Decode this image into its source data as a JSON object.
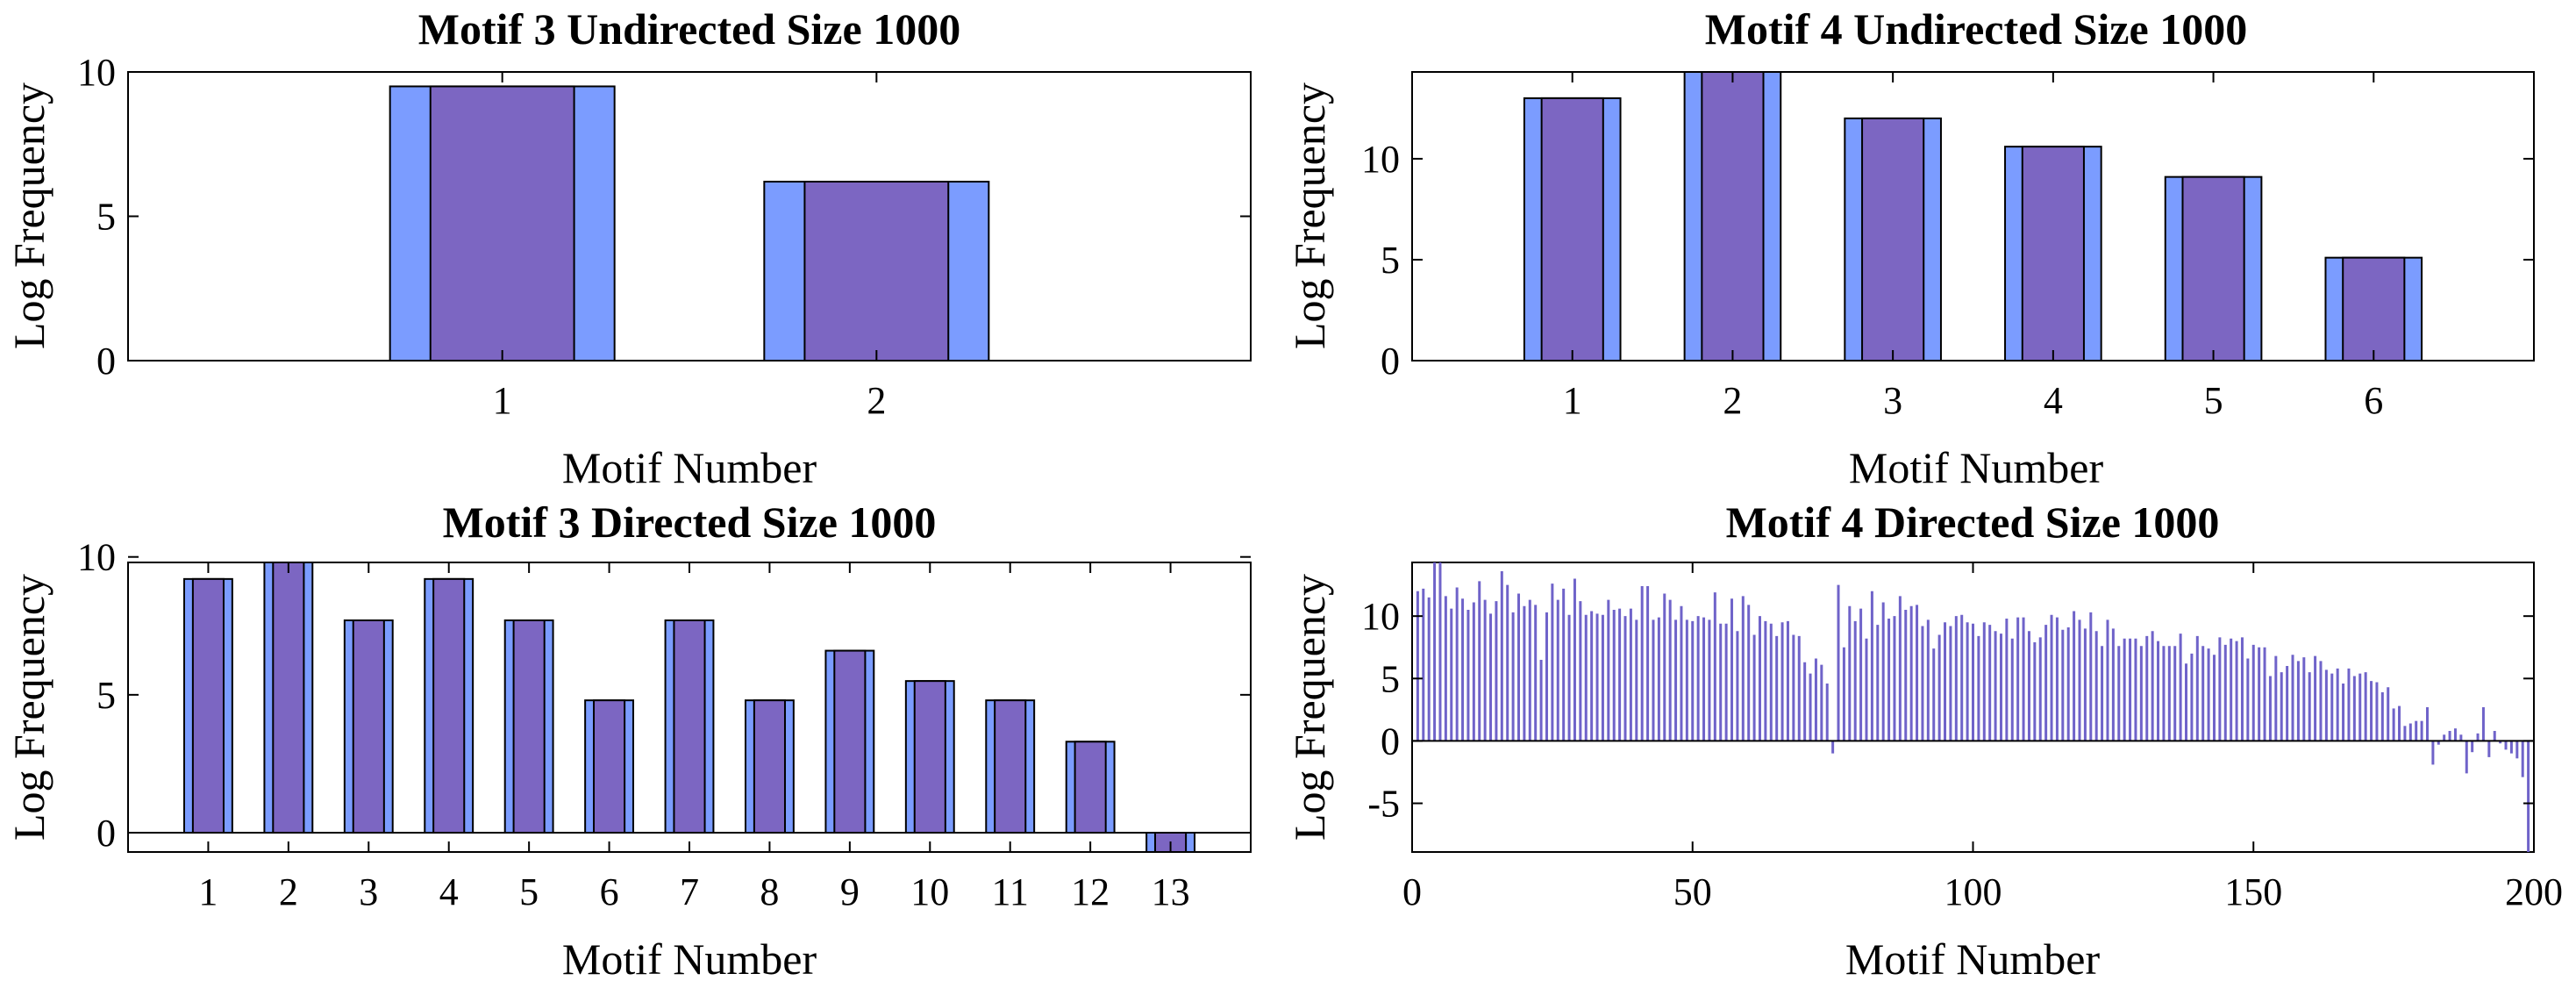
{
  "colors": {
    "outer_bar": "#7b9cff",
    "inner_bar": "#7c66c2",
    "stem": "#6f63c9",
    "edge": "#000000"
  },
  "chart_data": [
    {
      "type": "bar",
      "title": "Motif 3 Undirected Size 1000",
      "xlabel": "Motif Number",
      "ylabel": "Log Frequency",
      "categories": [
        "1",
        "2"
      ],
      "series": [
        {
          "values": [
            9.5,
            6.2
          ]
        },
        {
          "values": [
            9.5,
            6.2
          ]
        }
      ],
      "xlim": [
        0,
        3
      ],
      "ylim": [
        0,
        10
      ],
      "yticks": [
        0,
        5,
        10
      ],
      "grid": false
    },
    {
      "type": "bar",
      "title": "Motif 4 Undirected Size 1000",
      "xlabel": "Motif Number",
      "ylabel": "Log Frequency",
      "categories": [
        "1",
        "2",
        "3",
        "4",
        "5",
        "6"
      ],
      "series": [
        {
          "values": [
            13.0,
            14.3,
            12.0,
            10.6,
            9.1,
            5.1
          ]
        },
        {
          "values": [
            13.0,
            14.3,
            12.0,
            10.6,
            9.1,
            5.1
          ]
        }
      ],
      "xlim": [
        0,
        7
      ],
      "ylim": [
        0,
        14.3
      ],
      "yticks": [
        0,
        5,
        10
      ],
      "grid": false
    },
    {
      "type": "bar",
      "title": "Motif 3 Directed Size 1000",
      "xlabel": "Motif Number",
      "ylabel": "Log Frequency",
      "categories": [
        "1",
        "2",
        "3",
        "4",
        "5",
        "6",
        "7",
        "8",
        "9",
        "10",
        "11",
        "12",
        "13"
      ],
      "series": [
        {
          "values": [
            9.2,
            9.8,
            7.7,
            9.2,
            7.7,
            4.8,
            7.7,
            4.8,
            6.6,
            5.5,
            4.8,
            3.3,
            -0.7
          ]
        },
        {
          "values": [
            9.2,
            9.8,
            7.7,
            9.2,
            7.7,
            4.8,
            7.7,
            4.8,
            6.6,
            5.5,
            4.8,
            3.3,
            -0.7
          ]
        }
      ],
      "xlim": [
        0,
        14
      ],
      "ylim": [
        -0.7,
        9.8
      ],
      "yticks": [
        0,
        5,
        10
      ],
      "grid": false
    },
    {
      "type": "bar",
      "title": "Motif 4 Directed Size 1000",
      "xlabel": "Motif Number",
      "ylabel": "Log Frequency",
      "x_start": 1,
      "values": [
        12.0,
        12.2,
        11.5,
        14.3,
        14.3,
        11.6,
        10.6,
        12.3,
        11.4,
        10.5,
        11.1,
        12.8,
        11.3,
        10.2,
        11.2,
        13.6,
        12.5,
        10.3,
        11.8,
        10.8,
        11.3,
        10.9,
        6.5,
        10.3,
        12.6,
        11.3,
        12.2,
        10.1,
        13.0,
        11.2,
        10.1,
        10.4,
        10.2,
        10.1,
        11.3,
        10.5,
        10.6,
        10.0,
        10.6,
        9.7,
        12.4,
        12.4,
        9.7,
        9.9,
        11.8,
        11.3,
        9.7,
        10.8,
        9.7,
        9.6,
        10.0,
        9.9,
        9.7,
        11.9,
        9.4,
        9.4,
        11.4,
        8.8,
        11.6,
        10.9,
        8.5,
        10.0,
        9.6,
        9.4,
        8.4,
        9.5,
        9.6,
        8.5,
        8.4,
        6.3,
        5.4,
        6.6,
        6.1,
        4.6,
        -1.0,
        12.5,
        7.5,
        10.8,
        9.6,
        10.6,
        8.2,
        12.0,
        9.3,
        11.1,
        9.8,
        10.0,
        11.6,
        10.5,
        10.8,
        10.9,
        9.2,
        9.7,
        7.4,
        8.5,
        9.5,
        9.2,
        10.0,
        10.1,
        9.5,
        9.4,
        8.4,
        9.5,
        9.3,
        8.8,
        8.6,
        9.8,
        8.2,
        9.9,
        9.9,
        8.8,
        7.9,
        8.3,
        9.3,
        10.1,
        9.9,
        8.9,
        9.1,
        10.4,
        9.7,
        9.0,
        10.3,
        8.8,
        7.6,
        9.7,
        9.0,
        7.6,
        8.2,
        8.2,
        8.2,
        7.6,
        8.4,
        8.8,
        8.0,
        7.6,
        7.6,
        7.6,
        8.6,
        6.2,
        7.0,
        8.4,
        7.6,
        7.4,
        6.9,
        8.3,
        7.7,
        8.2,
        8.0,
        8.3,
        6.6,
        7.7,
        7.5,
        7.5,
        5.2,
        6.8,
        5.5,
        6.0,
        6.9,
        6.4,
        6.7,
        5.5,
        6.8,
        6.4,
        5.7,
        5.4,
        5.8,
        4.6,
        5.8,
        5.2,
        5.4,
        5.5,
        4.8,
        4.7,
        3.9,
        4.3,
        2.6,
        2.8,
        1.2,
        1.4,
        1.6,
        1.6,
        2.7,
        -1.9,
        -0.3,
        0.5,
        0.8,
        1.0,
        0.5,
        -2.6,
        -0.9,
        0.6,
        2.7,
        -1.3,
        0.8,
        -0.2,
        -0.7,
        -1.0,
        -1.4,
        -2.9,
        -8.9
      ],
      "xlim": [
        0,
        200
      ],
      "ylim": [
        -8.9,
        14.3
      ],
      "xticks": [
        0,
        50,
        100,
        150,
        200
      ],
      "yticks": [
        -5,
        0,
        5,
        10
      ],
      "grid": false
    }
  ]
}
